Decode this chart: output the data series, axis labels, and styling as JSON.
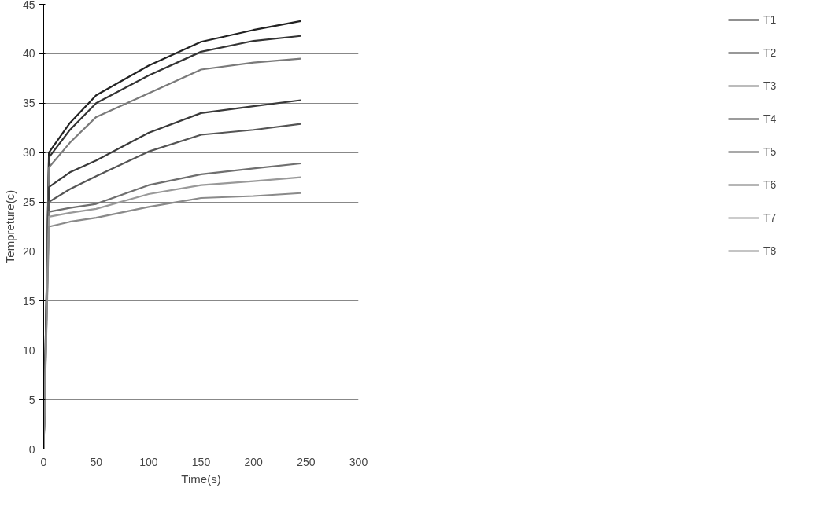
{
  "chart_data": {
    "type": "line",
    "xlabel": "Time(s)",
    "ylabel": "Tempreture(c)",
    "x": [
      0,
      5,
      25,
      50,
      100,
      150,
      200,
      245
    ],
    "series": [
      {
        "name": "T1",
        "color": "#222222",
        "values": [
          0,
          30,
          33,
          35.8,
          38.8,
          41.2,
          42.4,
          43.3
        ]
      },
      {
        "name": "T2",
        "color": "#333333",
        "values": [
          0,
          29.5,
          32.3,
          35,
          37.8,
          40.2,
          41.3,
          41.8
        ]
      },
      {
        "name": "T3",
        "color": "#7a7a7a",
        "values": [
          0,
          28.5,
          31,
          33.6,
          36,
          38.4,
          39.1,
          39.5
        ]
      },
      {
        "name": "T4",
        "color": "#3a3a3a",
        "values": [
          0,
          26.5,
          28,
          29.2,
          32,
          34,
          34.7,
          35.3
        ]
      },
      {
        "name": "T5",
        "color": "#555555",
        "values": [
          0,
          25,
          26.3,
          27.6,
          30.1,
          31.8,
          32.3,
          32.9
        ]
      },
      {
        "name": "T6",
        "color": "#6f6f6f",
        "values": [
          0,
          24,
          24.4,
          24.8,
          26.7,
          27.8,
          28.4,
          28.9
        ]
      },
      {
        "name": "T7",
        "color": "#999999",
        "values": [
          0,
          23.5,
          23.9,
          24.3,
          25.8,
          26.7,
          27.1,
          27.5
        ]
      },
      {
        "name": "T8",
        "color": "#8a8a8a",
        "values": [
          0,
          22.5,
          23,
          23.4,
          24.5,
          25.4,
          25.6,
          25.9
        ]
      }
    ],
    "xlim": [
      0,
      300
    ],
    "xticks": [
      0,
      50,
      100,
      150,
      200,
      250,
      300
    ],
    "ylim": [
      0,
      45
    ],
    "yticks": [
      0,
      5,
      10,
      15,
      20,
      25,
      30,
      35,
      40,
      45
    ],
    "grid": "y",
    "legend": "right",
    "line_style": "solid"
  }
}
